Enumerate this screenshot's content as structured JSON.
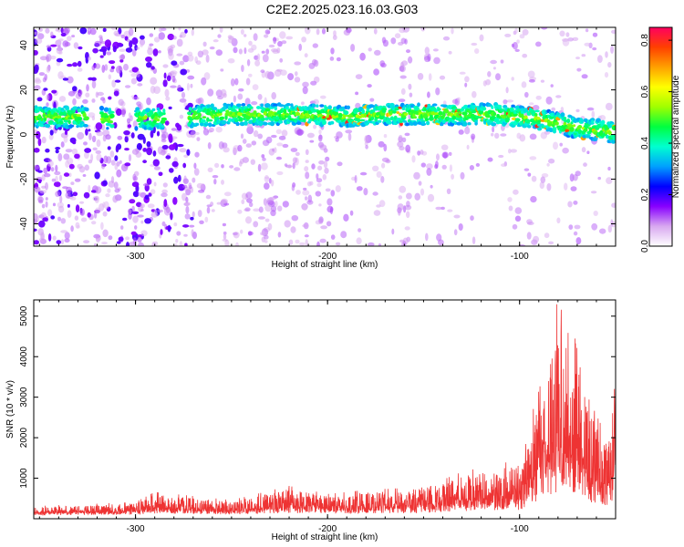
{
  "page": {
    "title": "C2E2.2025.023.16.03.G03"
  },
  "chart_data": [
    {
      "type": "heatmap",
      "xlabel": "Height of straight line (km)",
      "ylabel": "Frequency (Hz)",
      "xlim": [
        -353,
        -50
      ],
      "ylim": [
        -50,
        48
      ],
      "xticks": [
        -300,
        -200,
        -100
      ],
      "yticks": [
        -40,
        -20,
        0,
        20,
        40
      ],
      "colorbar": {
        "label": "Normalized spectral amplitude",
        "range": [
          0,
          0.85
        ],
        "ticks": [
          0.0,
          0.2,
          0.4,
          0.6,
          0.8
        ],
        "colors": [
          "#ffffff",
          "#d8a8f0",
          "#8800ff",
          "#0000ff",
          "#00a0ff",
          "#00ffd0",
          "#00ff40",
          "#a0ff00",
          "#ffff00",
          "#ffa000",
          "#ff4000",
          "#ff0060"
        ]
      },
      "ridge": {
        "x": [
          -350,
          -330,
          -310,
          -290,
          -270,
          -250,
          -230,
          -210,
          -190,
          -170,
          -150,
          -130,
          -110,
          -90,
          -70,
          -50
        ],
        "freq": [
          8,
          8,
          7,
          7,
          8,
          9,
          9,
          9,
          8,
          9,
          9,
          9,
          9,
          7,
          3,
          1
        ]
      }
    },
    {
      "type": "line",
      "xlabel": "Height of straight line (km)",
      "ylabel": "SNR (10 * v/v)",
      "xlim": [
        -353,
        -50
      ],
      "ylim": [
        0,
        5400
      ],
      "xticks": [
        -300,
        -200,
        -100
      ],
      "yticks": [
        1000,
        2000,
        3000,
        4000,
        5000
      ],
      "color": "#ee3333",
      "envelope": {
        "x": [
          -353,
          -300,
          -290,
          -250,
          -220,
          -200,
          -180,
          -160,
          -140,
          -130,
          -120,
          -110,
          -100,
          -95,
          -90,
          -85,
          -80,
          -75,
          -70,
          -65,
          -60,
          -55,
          -50
        ],
        "upper": [
          250,
          350,
          600,
          400,
          750,
          550,
          650,
          700,
          900,
          1100,
          1200,
          1300,
          1400,
          2000,
          3500,
          4000,
          5400,
          4500,
          5000,
          3000,
          2500,
          2000,
          3300
        ]
      }
    }
  ]
}
